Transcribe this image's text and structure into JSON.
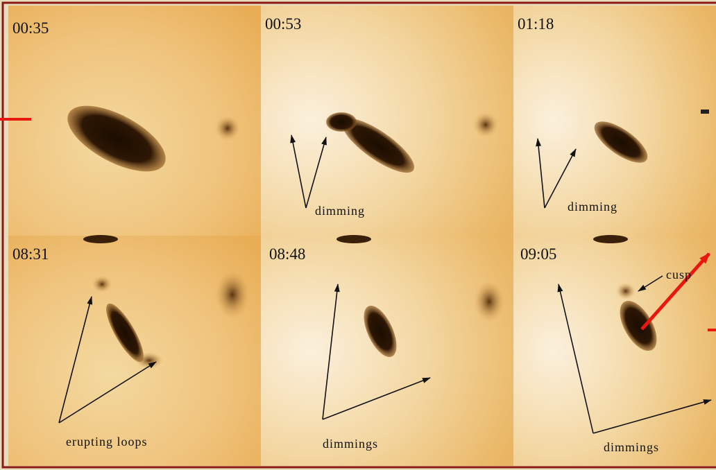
{
  "panels": [
    {
      "time": "00:35",
      "labels": []
    },
    {
      "time": "00:53",
      "labels": [
        "dimming"
      ]
    },
    {
      "time": "01:18",
      "labels": [
        "dimming"
      ]
    },
    {
      "time": "08:31",
      "labels": [
        "erupting loops"
      ]
    },
    {
      "time": "08:48",
      "labels": [
        "dimmings"
      ]
    },
    {
      "time": "09:05",
      "labels": [
        "dimmings",
        "cusp"
      ]
    }
  ]
}
